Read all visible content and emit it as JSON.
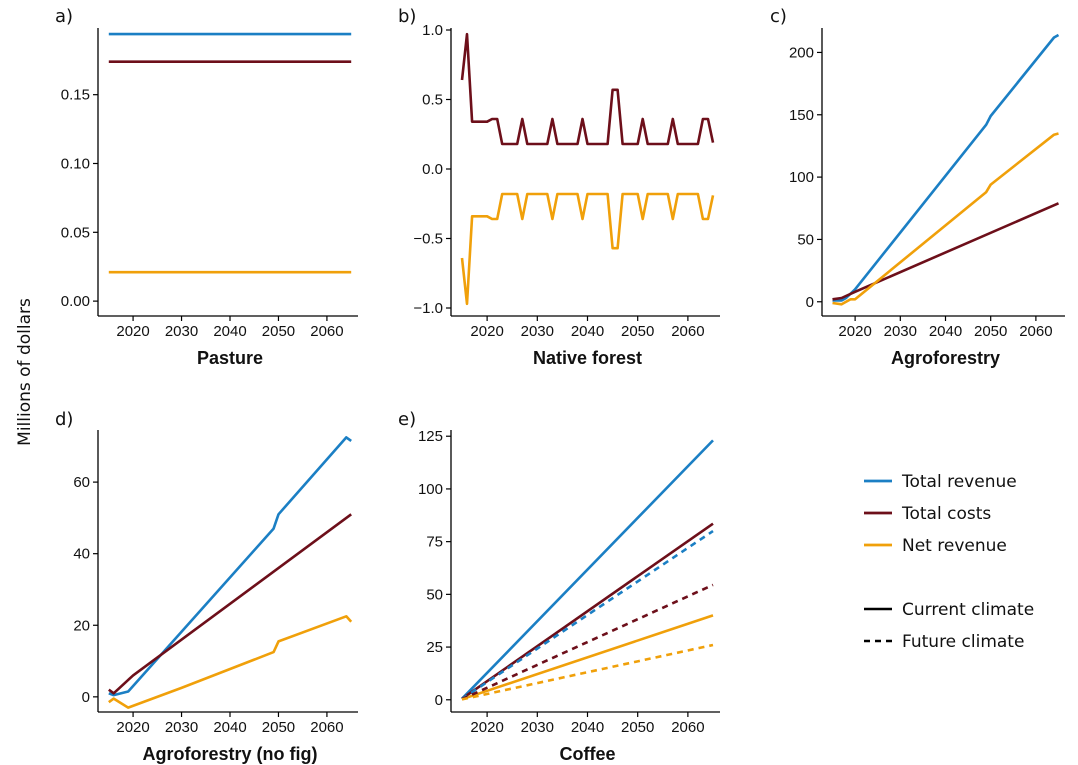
{
  "colors": {
    "total_revenue": "#1b7fc4",
    "total_costs": "#6d0f1a",
    "net_revenue": "#f0a00a",
    "axis": "#000000"
  },
  "y_axis_label": "Millions of dollars",
  "legend": {
    "series": [
      {
        "key": "total_revenue",
        "label": "Total revenue"
      },
      {
        "key": "total_costs",
        "label": "Total costs"
      },
      {
        "key": "net_revenue",
        "label": "Net revenue"
      }
    ],
    "styles": [
      {
        "key": "current",
        "label": "Current climate",
        "dash": "solid"
      },
      {
        "key": "future",
        "label": "Future climate",
        "dash": "dashed"
      }
    ]
  },
  "chart_data": [
    {
      "panel": "a)",
      "type": "line",
      "xlabel": "Pasture",
      "xlim": [
        2014,
        2066
      ],
      "ylim": [
        -0.005,
        0.197
      ],
      "xticks": [
        2020,
        2030,
        2040,
        2050,
        2060
      ],
      "yticks": [
        0.0,
        0.05,
        0.1,
        0.15
      ],
      "ytick_labels": [
        "0.00",
        "0.05",
        "0.10",
        "0.15"
      ],
      "series": [
        {
          "key": "total_revenue",
          "dash": "solid",
          "points": [
            [
              2015,
              0.194
            ],
            [
              2065,
              0.194
            ]
          ]
        },
        {
          "key": "total_costs",
          "dash": "solid",
          "points": [
            [
              2015,
              0.174
            ],
            [
              2065,
              0.174
            ]
          ]
        },
        {
          "key": "net_revenue",
          "dash": "solid",
          "points": [
            [
              2015,
              0.021
            ],
            [
              2065,
              0.021
            ]
          ]
        }
      ]
    },
    {
      "panel": "b)",
      "type": "line",
      "xlabel": "Native forest",
      "xlim": [
        2014,
        2066
      ],
      "ylim": [
        -1.0,
        1.0
      ],
      "xticks": [
        2020,
        2030,
        2040,
        2050,
        2060
      ],
      "yticks": [
        -1.0,
        -0.5,
        0.0,
        0.5,
        1.0
      ],
      "ytick_labels": [
        "−1.0",
        "−0.5",
        "0.0",
        "0.5",
        "1.0"
      ],
      "series": [
        {
          "key": "total_costs",
          "dash": "solid",
          "points": [
            [
              2015,
              0.64
            ],
            [
              2016,
              0.97
            ],
            [
              2017,
              0.34
            ],
            [
              2018,
              0.34
            ],
            [
              2019,
              0.34
            ],
            [
              2020,
              0.34
            ],
            [
              2021,
              0.36
            ],
            [
              2022,
              0.36
            ],
            [
              2023,
              0.18
            ],
            [
              2024,
              0.18
            ],
            [
              2025,
              0.18
            ],
            [
              2026,
              0.18
            ],
            [
              2027,
              0.36
            ],
            [
              2028,
              0.18
            ],
            [
              2029,
              0.18
            ],
            [
              2030,
              0.18
            ],
            [
              2031,
              0.18
            ],
            [
              2032,
              0.18
            ],
            [
              2033,
              0.36
            ],
            [
              2034,
              0.18
            ],
            [
              2035,
              0.18
            ],
            [
              2036,
              0.18
            ],
            [
              2037,
              0.18
            ],
            [
              2038,
              0.18
            ],
            [
              2039,
              0.36
            ],
            [
              2040,
              0.18
            ],
            [
              2041,
              0.18
            ],
            [
              2042,
              0.18
            ],
            [
              2043,
              0.18
            ],
            [
              2044,
              0.18
            ],
            [
              2045,
              0.57
            ],
            [
              2046,
              0.57
            ],
            [
              2047,
              0.18
            ],
            [
              2048,
              0.18
            ],
            [
              2049,
              0.18
            ],
            [
              2050,
              0.18
            ],
            [
              2051,
              0.36
            ],
            [
              2052,
              0.18
            ],
            [
              2053,
              0.18
            ],
            [
              2054,
              0.18
            ],
            [
              2055,
              0.18
            ],
            [
              2056,
              0.18
            ],
            [
              2057,
              0.36
            ],
            [
              2058,
              0.18
            ],
            [
              2059,
              0.18
            ],
            [
              2060,
              0.18
            ],
            [
              2061,
              0.18
            ],
            [
              2062,
              0.18
            ],
            [
              2063,
              0.36
            ],
            [
              2064,
              0.36
            ],
            [
              2065,
              0.19
            ]
          ]
        },
        {
          "key": "net_revenue",
          "dash": "solid",
          "points": [
            [
              2015,
              -0.64
            ],
            [
              2016,
              -0.97
            ],
            [
              2017,
              -0.34
            ],
            [
              2018,
              -0.34
            ],
            [
              2019,
              -0.34
            ],
            [
              2020,
              -0.34
            ],
            [
              2021,
              -0.36
            ],
            [
              2022,
              -0.36
            ],
            [
              2023,
              -0.18
            ],
            [
              2024,
              -0.18
            ],
            [
              2025,
              -0.18
            ],
            [
              2026,
              -0.18
            ],
            [
              2027,
              -0.36
            ],
            [
              2028,
              -0.18
            ],
            [
              2029,
              -0.18
            ],
            [
              2030,
              -0.18
            ],
            [
              2031,
              -0.18
            ],
            [
              2032,
              -0.18
            ],
            [
              2033,
              -0.36
            ],
            [
              2034,
              -0.18
            ],
            [
              2035,
              -0.18
            ],
            [
              2036,
              -0.18
            ],
            [
              2037,
              -0.18
            ],
            [
              2038,
              -0.18
            ],
            [
              2039,
              -0.36
            ],
            [
              2040,
              -0.18
            ],
            [
              2041,
              -0.18
            ],
            [
              2042,
              -0.18
            ],
            [
              2043,
              -0.18
            ],
            [
              2044,
              -0.18
            ],
            [
              2045,
              -0.57
            ],
            [
              2046,
              -0.57
            ],
            [
              2047,
              -0.18
            ],
            [
              2048,
              -0.18
            ],
            [
              2049,
              -0.18
            ],
            [
              2050,
              -0.18
            ],
            [
              2051,
              -0.36
            ],
            [
              2052,
              -0.18
            ],
            [
              2053,
              -0.18
            ],
            [
              2054,
              -0.18
            ],
            [
              2055,
              -0.18
            ],
            [
              2056,
              -0.18
            ],
            [
              2057,
              -0.36
            ],
            [
              2058,
              -0.18
            ],
            [
              2059,
              -0.18
            ],
            [
              2060,
              -0.18
            ],
            [
              2061,
              -0.18
            ],
            [
              2062,
              -0.18
            ],
            [
              2063,
              -0.36
            ],
            [
              2064,
              -0.36
            ],
            [
              2065,
              -0.19
            ]
          ]
        }
      ]
    },
    {
      "panel": "c)",
      "type": "line",
      "xlabel": "Agroforestry",
      "xlim": [
        2014,
        2066
      ],
      "ylim": [
        -5,
        218
      ],
      "xticks": [
        2020,
        2030,
        2040,
        2050,
        2060
      ],
      "yticks": [
        0,
        50,
        100,
        150,
        200
      ],
      "ytick_labels": [
        "0",
        "50",
        "100",
        "150",
        "200"
      ],
      "series": [
        {
          "key": "total_revenue",
          "dash": "solid",
          "points": [
            [
              2015,
              1
            ],
            [
              2017,
              1
            ],
            [
              2018,
              3
            ],
            [
              2020,
              10
            ],
            [
              2049,
              142
            ],
            [
              2050,
              149
            ],
            [
              2064,
              212
            ],
            [
              2065,
              214
            ]
          ]
        },
        {
          "key": "total_costs",
          "dash": "solid",
          "points": [
            [
              2015,
              2
            ],
            [
              2017,
              3
            ],
            [
              2020,
              8
            ],
            [
              2065,
              79
            ]
          ]
        },
        {
          "key": "net_revenue",
          "dash": "solid",
          "points": [
            [
              2015,
              -1
            ],
            [
              2017,
              -2
            ],
            [
              2019,
              2
            ],
            [
              2020,
              2
            ],
            [
              2049,
              88
            ],
            [
              2050,
              94
            ],
            [
              2064,
              134
            ],
            [
              2065,
              135
            ]
          ]
        }
      ]
    },
    {
      "panel": "d)",
      "type": "line",
      "xlabel": "Agroforestry (no fig)",
      "xlim": [
        2014,
        2066
      ],
      "ylim": [
        -2,
        74
      ],
      "xticks": [
        2020,
        2030,
        2040,
        2050,
        2060
      ],
      "yticks": [
        0,
        20,
        40,
        60
      ],
      "ytick_labels": [
        "0",
        "20",
        "40",
        "60"
      ],
      "series": [
        {
          "key": "total_revenue",
          "dash": "solid",
          "points": [
            [
              2015,
              1
            ],
            [
              2016,
              0.5
            ],
            [
              2019,
              1.5
            ],
            [
              2049,
              47
            ],
            [
              2050,
              51
            ],
            [
              2064,
              72.5
            ],
            [
              2065,
              71.5
            ]
          ]
        },
        {
          "key": "total_costs",
          "dash": "solid",
          "points": [
            [
              2015,
              2
            ],
            [
              2016,
              1
            ],
            [
              2020,
              6
            ],
            [
              2065,
              51
            ]
          ]
        },
        {
          "key": "net_revenue",
          "dash": "solid",
          "points": [
            [
              2015,
              -1.5
            ],
            [
              2016,
              -0.5
            ],
            [
              2019,
              -3
            ],
            [
              2030,
              2.5
            ],
            [
              2049,
              12.5
            ],
            [
              2050,
              15.5
            ],
            [
              2064,
              22.5
            ],
            [
              2065,
              21
            ]
          ]
        }
      ]
    },
    {
      "panel": "e)",
      "type": "line",
      "xlabel": "Coffee",
      "xlim": [
        2014,
        2066
      ],
      "ylim": [
        -2,
        127
      ],
      "xticks": [
        2020,
        2030,
        2040,
        2050,
        2060
      ],
      "yticks": [
        0,
        25,
        50,
        75,
        100,
        125
      ],
      "ytick_labels": [
        "0",
        "25",
        "50",
        "75",
        "100",
        "125"
      ],
      "series": [
        {
          "key": "total_revenue",
          "dash": "solid",
          "points": [
            [
              2015,
              0.5
            ],
            [
              2065,
              123
            ]
          ]
        },
        {
          "key": "total_costs",
          "dash": "solid",
          "points": [
            [
              2015,
              0.5
            ],
            [
              2065,
              83.5
            ]
          ]
        },
        {
          "key": "net_revenue",
          "dash": "solid",
          "points": [
            [
              2015,
              0.3
            ],
            [
              2065,
              40
            ]
          ]
        },
        {
          "key": "total_revenue",
          "dash": "dashed",
          "points": [
            [
              2015,
              0.4
            ],
            [
              2065,
              80
            ]
          ]
        },
        {
          "key": "total_costs",
          "dash": "dashed",
          "points": [
            [
              2015,
              0.3
            ],
            [
              2065,
              54.5
            ]
          ]
        },
        {
          "key": "net_revenue",
          "dash": "dashed",
          "points": [
            [
              2015,
              0.2
            ],
            [
              2065,
              26
            ]
          ]
        }
      ]
    }
  ]
}
